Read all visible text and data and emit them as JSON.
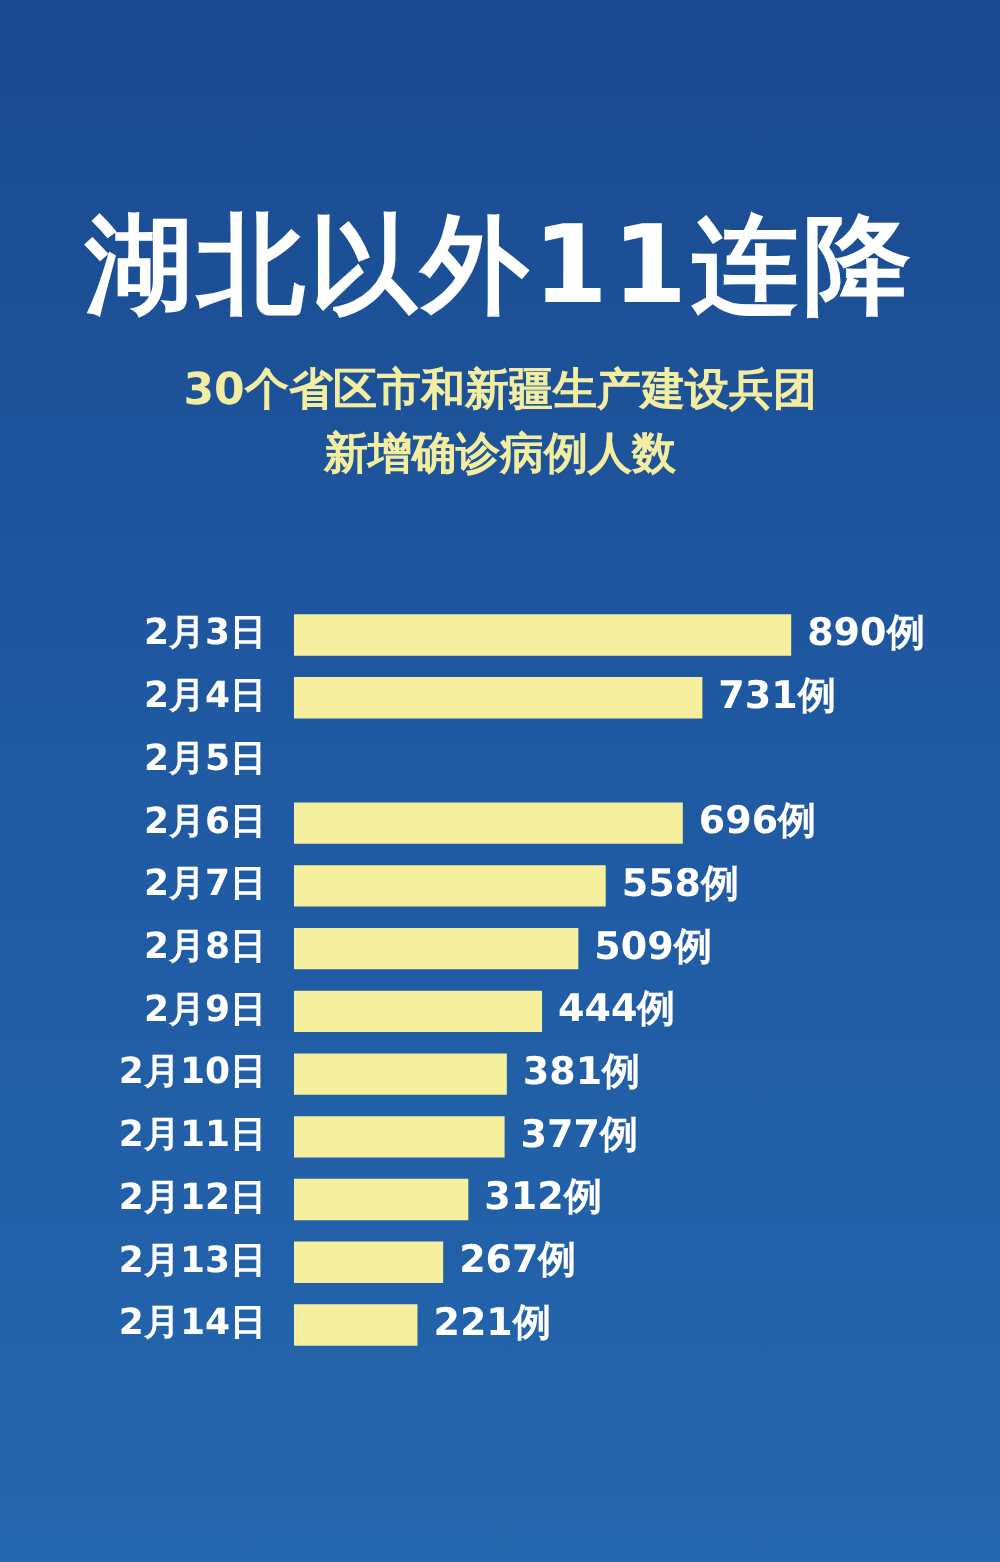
{
  "chart_data": {
    "type": "bar",
    "orientation": "horizontal",
    "title": "湖北以外11连降",
    "subtitle": "30个省区市和新疆生产建设兵团新增确诊病例人数",
    "categories": [
      "2月3日",
      "2月4日",
      "2月5日",
      "2月6日",
      "2月7日",
      "2月8日",
      "2月9日",
      "2月10日",
      "2月11日",
      "2月12日",
      "2月13日",
      "2月14日"
    ],
    "values": [
      890,
      731,
      null,
      696,
      558,
      509,
      444,
      381,
      377,
      312,
      267,
      221
    ],
    "value_labels": [
      "890例",
      "731例",
      null,
      "696例",
      "558例",
      "509例",
      "444例",
      "381例",
      "377例",
      "312例",
      "267例",
      "221例"
    ],
    "color": "#f6f09e",
    "tick_labels": "y",
    "grid": false
  }
}
